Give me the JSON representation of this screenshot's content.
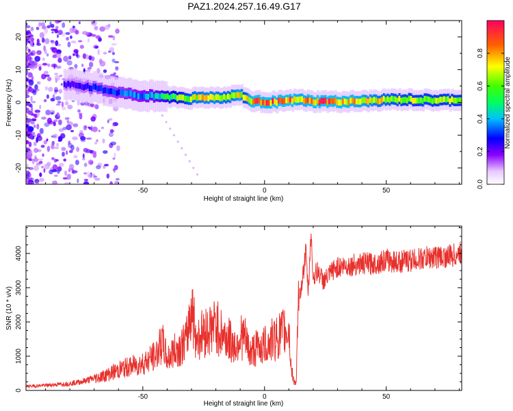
{
  "title": "PAZ1.2024.257.16.49.G17",
  "colors": {
    "snr_line": "#e8302c",
    "scatter_low": "#b040ff",
    "axis": "#000000",
    "background": "#ffffff"
  },
  "chart_data": [
    {
      "type": "heatmap",
      "xlabel": "Height of straight line (km)",
      "ylabel": "Frequency (Hz)",
      "xlim": [
        -98,
        81
      ],
      "ylim": [
        -25,
        25
      ],
      "x_ticks": [
        "-50",
        "0",
        "50"
      ],
      "y_ticks": [
        "20",
        "10",
        "0",
        "-10",
        "-20"
      ],
      "grid": false,
      "ridge": {
        "x": [
          -80,
          -70,
          -60,
          -50,
          -45,
          -40,
          -35,
          -30,
          -25,
          -20,
          -15,
          -10,
          -8,
          -5,
          0,
          5,
          10,
          15,
          20,
          25,
          30,
          40,
          50,
          60,
          70,
          81
        ],
        "frequency": [
          5.5,
          4.5,
          3,
          2,
          2,
          1.8,
          1.5,
          1.3,
          1.5,
          1.5,
          1.6,
          2.5,
          1.5,
          0.3,
          0.2,
          0.2,
          0.5,
          0.8,
          0.2,
          0.3,
          0.2,
          0.3,
          0.8,
          0.8,
          0.6,
          0.8
        ],
        "amplitude": [
          0.25,
          0.3,
          0.35,
          0.4,
          0.45,
          0.55,
          0.65,
          0.75,
          0.8,
          0.8,
          0.75,
          0.85,
          0.7,
          0.9,
          0.95,
          0.95,
          0.9,
          0.85,
          0.9,
          0.95,
          0.9,
          0.85,
          0.75,
          0.7,
          0.7,
          0.7
        ]
      },
      "colorbar": {
        "label": "Normalized spectral amplitude",
        "range": [
          0,
          1
        ],
        "ticks": [
          "0.0",
          "0.2",
          "0.4",
          "0.6",
          "0.8"
        ]
      }
    },
    {
      "type": "line",
      "xlabel": "Height of straight line (km)",
      "ylabel": "SNR (10 * v/v)",
      "xlim": [
        -98,
        81
      ],
      "ylim": [
        0,
        4800
      ],
      "x_ticks": [
        "-50",
        "0",
        "50"
      ],
      "y_ticks": [
        "0",
        "1000",
        "2000",
        "3000",
        "4000"
      ],
      "grid": false,
      "series": [
        {
          "x": [
            -98,
            -90,
            -80,
            -75,
            -70,
            -65,
            -60,
            -55,
            -50,
            -45,
            -42,
            -40,
            -38,
            -36,
            -34,
            -32,
            -30,
            -28,
            -25,
            -22,
            -20,
            -18,
            -15,
            -12,
            -10,
            -8,
            -6,
            -4,
            -2,
            0,
            2,
            4,
            6,
            8,
            10,
            11,
            12,
            13,
            14,
            15,
            16,
            17,
            18,
            19,
            20,
            22,
            24,
            26,
            28,
            30,
            35,
            40,
            45,
            50,
            55,
            60,
            65,
            70,
            75,
            78,
            81
          ],
          "y": [
            120,
            150,
            200,
            260,
            350,
            450,
            600,
            700,
            800,
            1000,
            1400,
            900,
            1100,
            1200,
            1300,
            1500,
            2500,
            1500,
            1700,
            1800,
            1900,
            1700,
            1500,
            1300,
            1600,
            1500,
            1100,
            1200,
            1300,
            1300,
            1400,
            1500,
            1600,
            1700,
            1800,
            600,
            300,
            200,
            2500,
            3000,
            3500,
            4000,
            2800,
            4600,
            3300,
            3500,
            3200,
            3300,
            3500,
            3600,
            3650,
            3700,
            3700,
            3800,
            3750,
            3800,
            3850,
            3900,
            3900,
            3950,
            4000
          ]
        }
      ]
    }
  ]
}
